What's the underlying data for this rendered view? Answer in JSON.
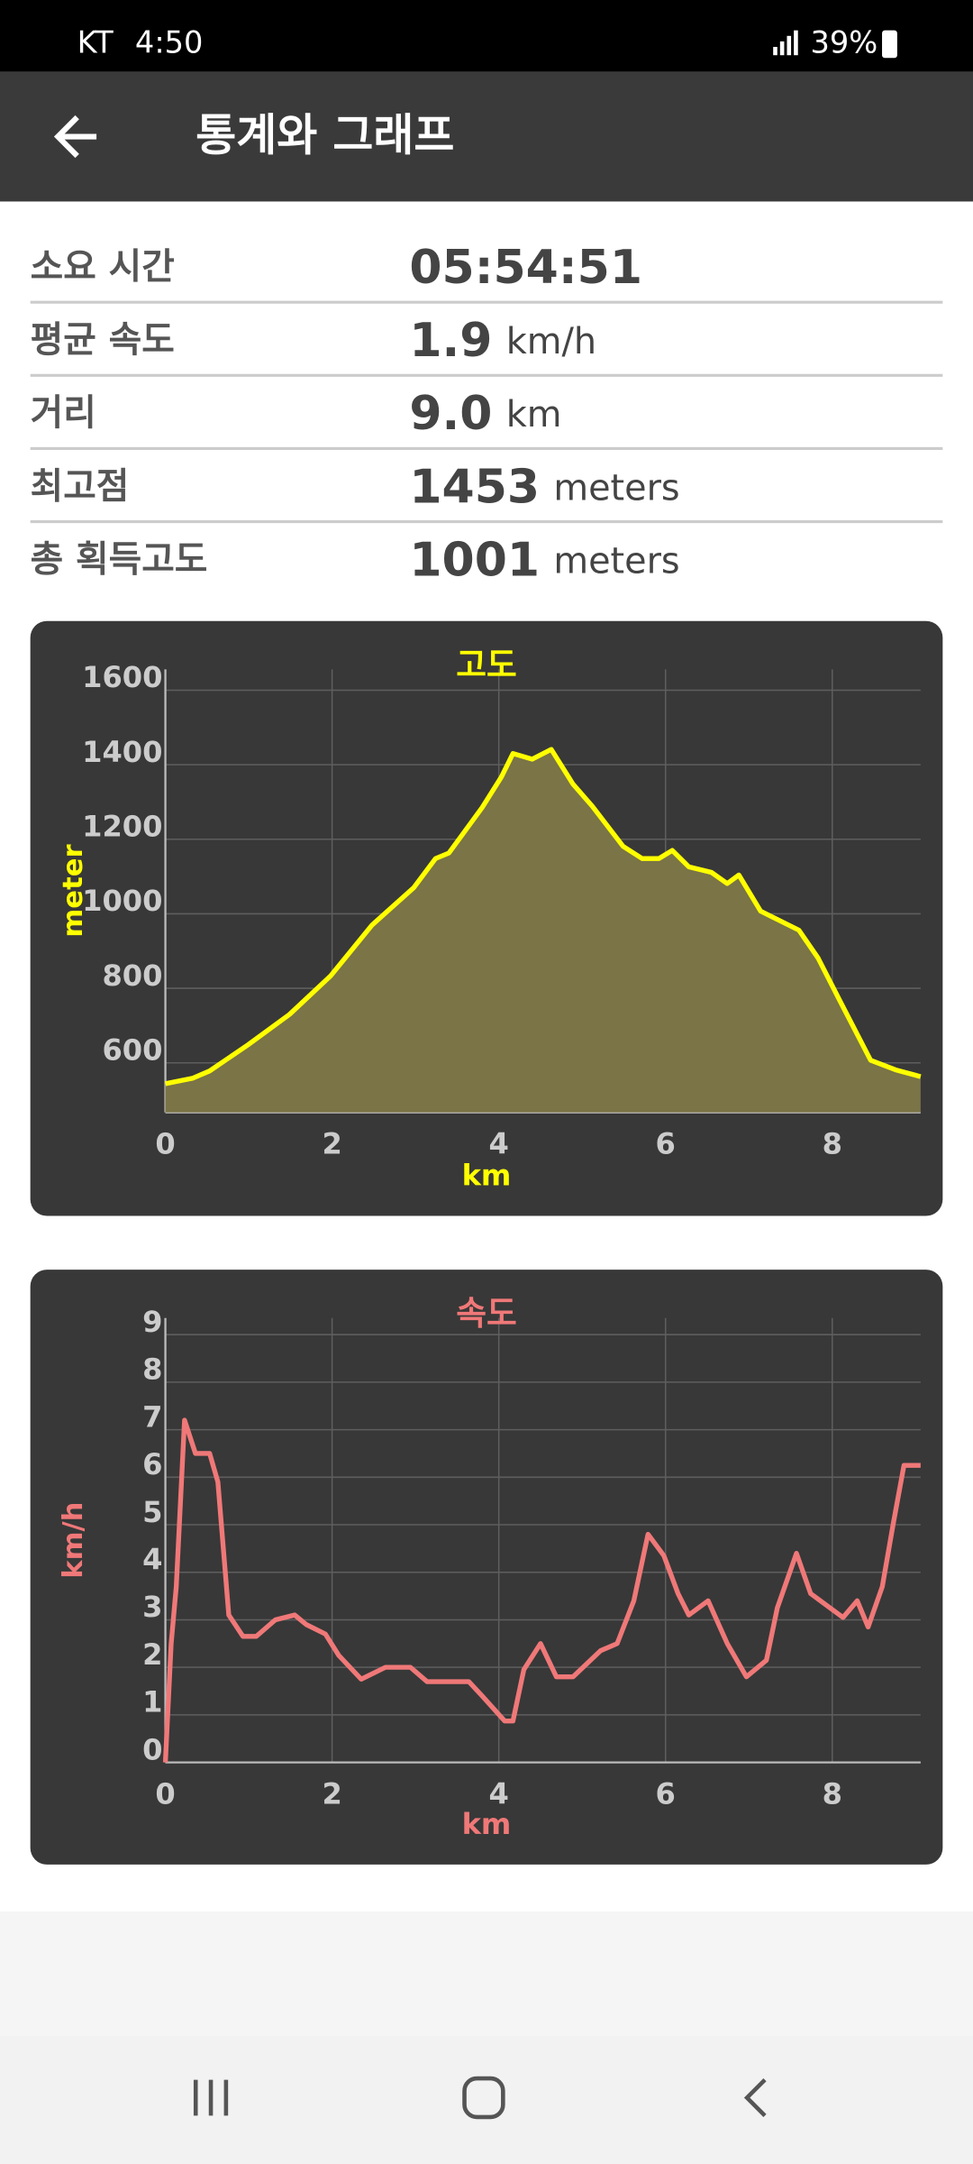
{
  "status_bar": {
    "carrier": "KT",
    "time": "4:50",
    "battery": "39%"
  },
  "app_bar": {
    "title": "통계와 그래프"
  },
  "stats": [
    {
      "label": "소요 시간",
      "value": "05:54:51"
    },
    {
      "label": "평균 속도",
      "value": "1.9",
      "unit": "km/h"
    },
    {
      "label": "거리",
      "value": "9.0",
      "unit": "km"
    },
    {
      "label": "최고점",
      "value": "1453",
      "unit": "meters"
    },
    {
      "label": "총 획득고도",
      "value": "1001",
      "unit": "meters"
    }
  ],
  "chart_data": [
    {
      "type": "area",
      "title": "고도",
      "x_label": "km",
      "y_label": "meter",
      "color": "#ffff00",
      "fill": "#7a7446",
      "xlim": [
        0,
        9.06
      ],
      "ylim": [
        467,
        1656
      ],
      "xticks": [
        0,
        2,
        4,
        6,
        8
      ],
      "yticks": [
        600,
        800,
        1000,
        1200,
        1400,
        1600
      ],
      "grid": true,
      "x": [
        0,
        0.33,
        0.53,
        0.99,
        1.49,
        1.98,
        2.48,
        2.98,
        3.24,
        3.4,
        3.8,
        4.03,
        4.17,
        4.4,
        4.63,
        4.89,
        5.12,
        5.49,
        5.72,
        5.92,
        6.08,
        6.28,
        6.55,
        6.74,
        6.88,
        7.14,
        7.6,
        7.83,
        8.1,
        8.46,
        8.76,
        9.06
      ],
      "values": [
        544,
        559,
        578,
        648,
        730,
        833,
        970,
        1070,
        1148,
        1163,
        1285,
        1367,
        1430,
        1415,
        1441,
        1348,
        1289,
        1181,
        1148,
        1148,
        1170,
        1126,
        1111,
        1081,
        1104,
        1007,
        956,
        881,
        763,
        607,
        581,
        563
      ]
    },
    {
      "type": "line",
      "title": "속도",
      "x_label": "km",
      "y_label": "km/h",
      "color": "#f07878",
      "xlim": [
        0,
        9.06
      ],
      "ylim": [
        0,
        9.35
      ],
      "xticks": [
        0,
        2,
        4,
        6,
        8
      ],
      "yticks": [
        0,
        1,
        2,
        3,
        4,
        5,
        6,
        7,
        8,
        9
      ],
      "grid": true,
      "x": [
        0,
        0.07,
        0.13,
        0.23,
        0.36,
        0.53,
        0.63,
        0.76,
        0.93,
        1.09,
        1.32,
        1.55,
        1.69,
        1.92,
        2.08,
        2.35,
        2.64,
        2.94,
        3.14,
        3.64,
        3.8,
        4.07,
        4.17,
        4.3,
        4.5,
        4.69,
        4.89,
        5.22,
        5.42,
        5.62,
        5.79,
        5.98,
        6.15,
        6.28,
        6.51,
        6.74,
        6.97,
        7.21,
        7.34,
        7.57,
        7.74,
        8.13,
        8.3,
        8.43,
        8.6,
        8.73,
        8.86,
        9.06
      ],
      "values": [
        0,
        2.5,
        3.7,
        7.2,
        6.5,
        6.5,
        5.9,
        3.1,
        2.65,
        2.65,
        3.0,
        3.1,
        2.9,
        2.7,
        2.25,
        1.75,
        2.0,
        2.0,
        1.7,
        1.7,
        1.4,
        0.87,
        0.87,
        1.95,
        2.5,
        1.8,
        1.8,
        2.35,
        2.5,
        3.4,
        4.8,
        4.35,
        3.55,
        3.1,
        3.4,
        2.5,
        1.8,
        2.15,
        3.25,
        4.4,
        3.55,
        3.05,
        3.4,
        2.85,
        3.7,
        5.0,
        6.25,
        6.25
      ]
    }
  ]
}
